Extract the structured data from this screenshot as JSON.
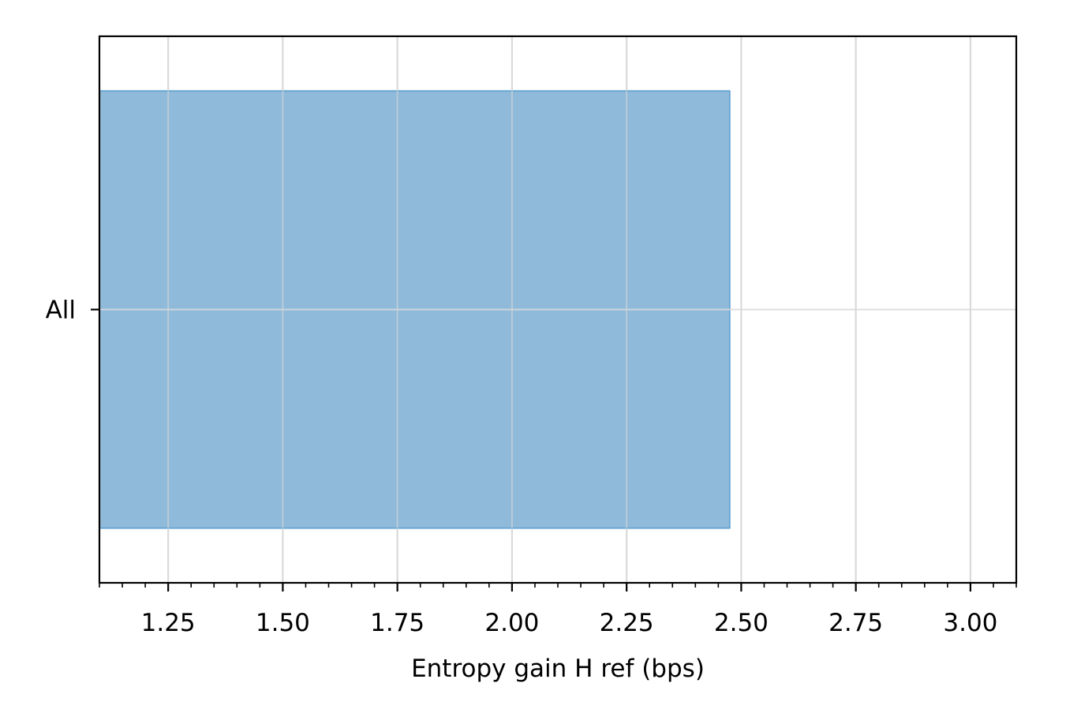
{
  "chart_data": {
    "type": "bar",
    "orientation": "horizontal",
    "categories": [
      "All"
    ],
    "values": [
      2.475
    ],
    "title": "",
    "xlabel": "Entropy gain H ref (bps)",
    "ylabel": "",
    "xlim": [
      1.1,
      3.1
    ],
    "xticks": [
      1.25,
      1.5,
      1.75,
      2.0,
      2.25,
      2.5,
      2.75,
      3.0
    ],
    "xtick_labels": [
      "1.25",
      "1.50",
      "1.75",
      "2.00",
      "2.25",
      "2.50",
      "2.75",
      "3.00"
    ],
    "minor_tick_step": 0.05,
    "grid": true,
    "colors": {
      "bar_fill": "#90bad9",
      "bar_edge": "#5a9fd0",
      "grid": "#d9d9d9",
      "axis": "#000000"
    }
  }
}
